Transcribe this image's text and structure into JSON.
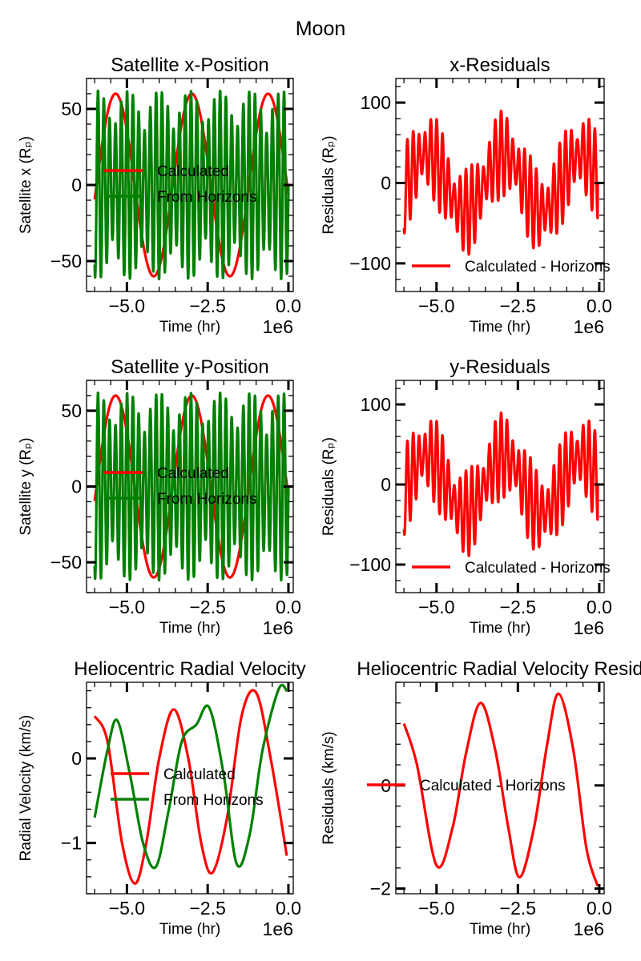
{
  "suptitle": "Moon",
  "colors": {
    "calculated": "#ff0000",
    "horizons": "#008000",
    "residual": "#ff0000"
  },
  "chart_data": [
    {
      "type": "line",
      "title": "Satellite x-Position",
      "xlabel": "Time (hr)",
      "ylabel": "Satellite x (Rₚ)",
      "x_offset_label": "1e6",
      "xlim": [
        -6.25,
        0.15
      ],
      "ylim": [
        -70,
        70
      ],
      "xticks": [
        -5.0,
        -2.5,
        0.0
      ],
      "xtick_labels": [
        "−5.0",
        "−2.5",
        "0.0"
      ],
      "yticks": [
        -50,
        0,
        50
      ],
      "ytick_labels": [
        "−50",
        "0",
        "50"
      ],
      "legend_position": "center-left",
      "series": [
        {
          "name": "Calculated",
          "color": "#ff0000",
          "model": "sine",
          "amplitude": 60,
          "period": 2.36,
          "phase_x": -5.35,
          "x_range": [
            -6.0,
            0.0
          ]
        },
        {
          "name": "From Horizons",
          "color": "#008000",
          "model": "beat",
          "amplitude": 62,
          "carrier_period": 0.18,
          "envelope_period": 0.95,
          "x_range": [
            -6.0,
            0.0
          ]
        }
      ]
    },
    {
      "type": "line",
      "title": "x-Residuals",
      "xlabel": "Time (hr)",
      "ylabel": "Residuals (Rₚ)",
      "x_offset_label": "1e6",
      "xlim": [
        -6.25,
        0.15
      ],
      "ylim": [
        -135,
        130
      ],
      "xticks": [
        -5.0,
        -2.5,
        0.0
      ],
      "xtick_labels": [
        "−5.0",
        "−2.5",
        "0.0"
      ],
      "yticks": [
        -100,
        0,
        100
      ],
      "ytick_labels": [
        "−100",
        "0",
        "100"
      ],
      "legend_position": "lower-right",
      "series": [
        {
          "name": "Calculated - Horizons",
          "color": "#ff0000",
          "model": "residual",
          "x_range": [
            -6.0,
            0.0
          ]
        }
      ]
    },
    {
      "type": "line",
      "title": "Satellite y-Position",
      "xlabel": "Time (hr)",
      "ylabel": "Satellite y (Rₚ)",
      "x_offset_label": "1e6",
      "xlim": [
        -6.25,
        0.15
      ],
      "ylim": [
        -70,
        70
      ],
      "xticks": [
        -5.0,
        -2.5,
        0.0
      ],
      "xtick_labels": [
        "−5.0",
        "−2.5",
        "0.0"
      ],
      "yticks": [
        -50,
        0,
        50
      ],
      "ytick_labels": [
        "−50",
        "0",
        "50"
      ],
      "legend_position": "center-left",
      "series": [
        {
          "name": "Calculated",
          "color": "#ff0000",
          "model": "sine",
          "amplitude": 60,
          "period": 2.36,
          "phase_x": -5.35,
          "x_range": [
            -6.0,
            0.0
          ]
        },
        {
          "name": "From Horizons",
          "color": "#008000",
          "model": "beat",
          "amplitude": 62,
          "carrier_period": 0.18,
          "envelope_period": 0.95,
          "x_range": [
            -6.0,
            0.0
          ]
        }
      ]
    },
    {
      "type": "line",
      "title": "y-Residuals",
      "xlabel": "Time (hr)",
      "ylabel": "Residuals (Rₚ)",
      "x_offset_label": "1e6",
      "xlim": [
        -6.25,
        0.15
      ],
      "ylim": [
        -135,
        130
      ],
      "xticks": [
        -5.0,
        -2.5,
        0.0
      ],
      "xtick_labels": [
        "−5.0",
        "−2.5",
        "0.0"
      ],
      "yticks": [
        -100,
        0,
        100
      ],
      "ytick_labels": [
        "−100",
        "0",
        "100"
      ],
      "legend_position": "lower-right",
      "series": [
        {
          "name": "Calculated - Horizons",
          "color": "#ff0000",
          "model": "residual",
          "x_range": [
            -6.0,
            0.0
          ]
        }
      ]
    },
    {
      "type": "line",
      "title": "Heliocentric Radial Velocity",
      "xlabel": "Time (hr)",
      "ylabel": "Radial Velocity (km/s)",
      "x_offset_label": "1e6",
      "xlim": [
        -6.25,
        0.15
      ],
      "ylim": [
        -1.6,
        0.9
      ],
      "xticks": [
        -5.0,
        -2.5,
        0.0
      ],
      "xtick_labels": [
        "−5.0",
        "−2.5",
        "0.0"
      ],
      "yticks": [
        -1,
        0
      ],
      "ytick_labels": [
        "−1",
        "0"
      ],
      "legend_position": "center",
      "series": [
        {
          "name": "Calculated",
          "color": "#ff0000",
          "x": [
            -6.0,
            -5.6,
            -5.15,
            -4.75,
            -4.4,
            -4.0,
            -3.55,
            -3.1,
            -2.7,
            -2.35,
            -1.9,
            -1.45,
            -1.0,
            -0.55,
            -0.05
          ],
          "y": [
            0.5,
            0.2,
            -1.0,
            -1.48,
            -1.0,
            0.0,
            0.58,
            0.0,
            -1.0,
            -1.35,
            -0.7,
            0.5,
            0.78,
            0.0,
            -1.15
          ]
        },
        {
          "name": "From Horizons",
          "color": "#008000",
          "x": [
            -6.0,
            -5.6,
            -5.3,
            -4.9,
            -4.5,
            -4.1,
            -3.7,
            -3.3,
            -2.85,
            -2.45,
            -2.0,
            -1.6,
            -1.2,
            -0.8,
            -0.3,
            -0.05
          ],
          "y": [
            -0.7,
            0.1,
            0.45,
            -0.2,
            -1.0,
            -1.28,
            -0.6,
            0.2,
            0.4,
            0.6,
            -0.2,
            -1.25,
            -0.9,
            0.1,
            0.82,
            0.8
          ]
        }
      ]
    },
    {
      "type": "line",
      "title": "Heliocentric Radial Velocity Resid",
      "xlabel": "Time (hr)",
      "ylabel": "Residuals (km/s)",
      "x_offset_label": "1e6",
      "xlim": [
        -6.25,
        0.15
      ],
      "ylim": [
        -2.1,
        2.0
      ],
      "xticks": [
        -5.0,
        -2.5,
        0.0
      ],
      "xtick_labels": [
        "−5.0",
        "−2.5",
        "0.0"
      ],
      "yticks": [
        -2,
        0
      ],
      "ytick_labels": [
        "−2",
        "0"
      ],
      "legend_position": "center-left",
      "series": [
        {
          "name": "Calculated - Horizons",
          "color": "#ff0000",
          "x": [
            -6.0,
            -5.6,
            -5.0,
            -4.5,
            -4.1,
            -3.65,
            -3.2,
            -2.8,
            -2.45,
            -2.0,
            -1.6,
            -1.25,
            -0.8,
            -0.4,
            -0.05
          ],
          "y": [
            1.2,
            0.4,
            -1.55,
            -0.8,
            0.6,
            1.6,
            0.7,
            -0.8,
            -1.78,
            -0.8,
            0.8,
            1.78,
            0.7,
            -1.2,
            -1.95
          ]
        }
      ]
    }
  ]
}
